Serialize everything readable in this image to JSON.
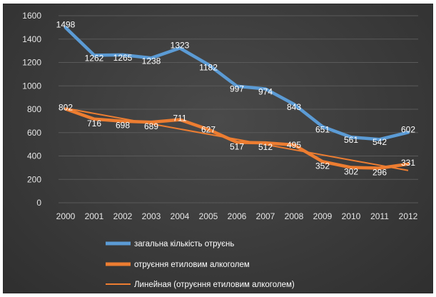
{
  "chart_data": {
    "type": "line",
    "title": "",
    "xlabel": "",
    "ylabel": "",
    "x": [
      "2000",
      "2001",
      "2002",
      "2003",
      "2004",
      "2005",
      "2006",
      "2007",
      "2008",
      "2009",
      "2010",
      "2011",
      "2012"
    ],
    "ylim": [
      0,
      1600
    ],
    "yticks": [
      "0",
      "200",
      "400",
      "600",
      "800",
      "1000",
      "1200",
      "1400",
      "1600"
    ],
    "grid": true,
    "legend_position": "bottom",
    "series": [
      {
        "name": "загальна кількість отруєнь",
        "color": "#5b9bd5",
        "values": [
          1498,
          1262,
          1265,
          1238,
          1323,
          1182,
          997,
          974,
          843,
          651,
          561,
          542,
          602
        ]
      },
      {
        "name": "отруєння етиловим алкоголем",
        "color": "#ed7d31",
        "values": [
          802,
          716,
          698,
          689,
          711,
          627,
          517,
          512,
          495,
          352,
          302,
          296,
          331
        ]
      }
    ],
    "trendline": {
      "name": "Линейная (отруєння етиловим алкоголем)",
      "color": "#ed7d31",
      "type": "linear",
      "of_series": "отруєння етиловим алкоголем"
    }
  }
}
